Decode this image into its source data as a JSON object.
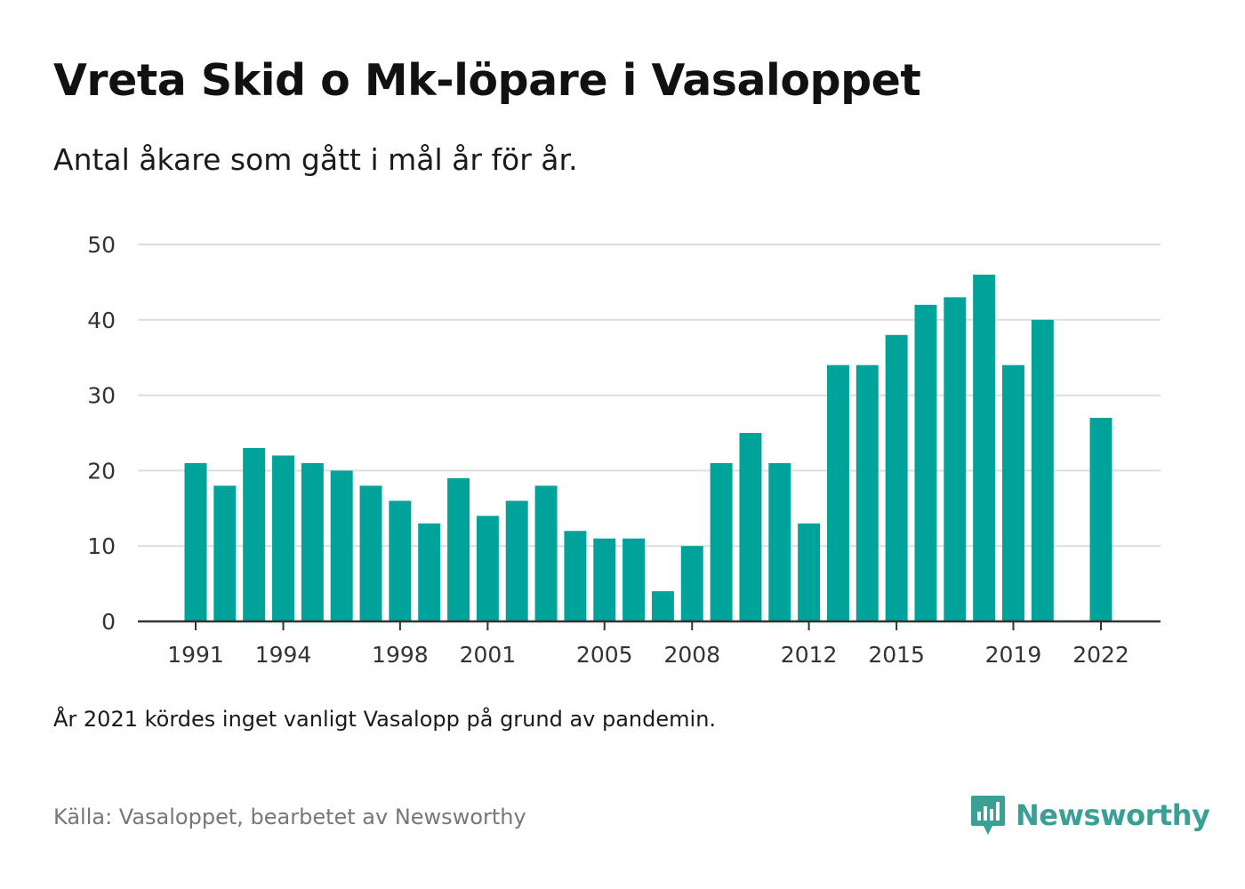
{
  "title": "Vreta Skid o Mk-löpare i Vasaloppet",
  "subtitle": "Antal åkare som gått i mål år för år.",
  "note": "År 2021 kördes inget vanligt Vasalopp på grund av pandemin.",
  "source": "Källa: Vasaloppet, bearbetet av Newsworthy",
  "logo": {
    "text": "Newsworthy",
    "icon": "bar-chart-badge-icon"
  },
  "colors": {
    "bar": "#00a39a",
    "grid": "#dddddd",
    "axis": "#333333",
    "brand": "#3a9f95"
  },
  "chart_data": {
    "type": "bar",
    "title": "Vreta Skid o Mk-löpare i Vasaloppet",
    "xlabel": "",
    "ylabel": "",
    "ylim": [
      0,
      50
    ],
    "yticks": [
      0,
      10,
      20,
      30,
      40,
      50
    ],
    "xticks": [
      1991,
      1994,
      1998,
      2001,
      2005,
      2008,
      2012,
      2015,
      2019,
      2022
    ],
    "xlim": [
      1991,
      2022
    ],
    "grid": true,
    "categories": [
      1991,
      1992,
      1993,
      1994,
      1995,
      1996,
      1997,
      1998,
      1999,
      2000,
      2001,
      2002,
      2003,
      2004,
      2005,
      2006,
      2007,
      2008,
      2009,
      2010,
      2011,
      2012,
      2013,
      2014,
      2015,
      2016,
      2017,
      2018,
      2019,
      2020,
      2021,
      2022
    ],
    "values": [
      21,
      18,
      23,
      22,
      21,
      20,
      18,
      16,
      13,
      19,
      14,
      16,
      18,
      12,
      11,
      11,
      4,
      10,
      21,
      25,
      21,
      13,
      34,
      34,
      38,
      42,
      43,
      46,
      34,
      40,
      null,
      27
    ]
  }
}
